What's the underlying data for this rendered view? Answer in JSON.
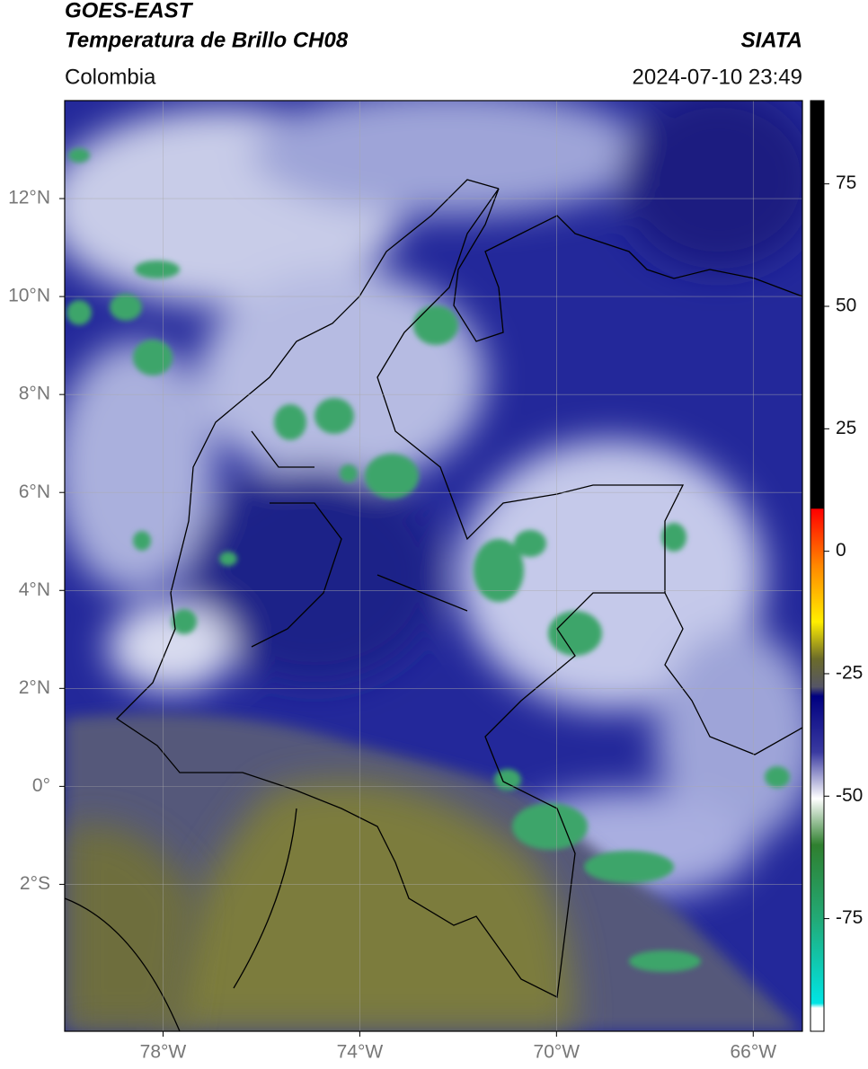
{
  "header": {
    "title": "GOES-EAST",
    "subtitle": "Temperatura de Brillo CH08",
    "region": "Colombia",
    "source": "SIATA",
    "datetime": "2024-07-10 23:49"
  },
  "map": {
    "xlim": [
      -80,
      -65
    ],
    "ylim": [
      -5,
      14
    ],
    "xticks": [
      {
        "value": -78,
        "label": "78°W"
      },
      {
        "value": -74,
        "label": "74°W"
      },
      {
        "value": -70,
        "label": "70°W"
      },
      {
        "value": -66,
        "label": "66°W"
      }
    ],
    "yticks": [
      {
        "value": -2,
        "label": "2°S"
      },
      {
        "value": 0,
        "label": "0°"
      },
      {
        "value": 2,
        "label": "2°N"
      },
      {
        "value": 4,
        "label": "4°N"
      },
      {
        "value": 6,
        "label": "6°N"
      },
      {
        "value": 8,
        "label": "8°N"
      },
      {
        "value": 10,
        "label": "10°N"
      },
      {
        "value": 12,
        "label": "12°N"
      }
    ],
    "grid": true
  },
  "colorbar": {
    "lim": [
      -98,
      92
    ],
    "ticks": [
      -75,
      -50,
      -25,
      0,
      25,
      50,
      75
    ]
  }
}
